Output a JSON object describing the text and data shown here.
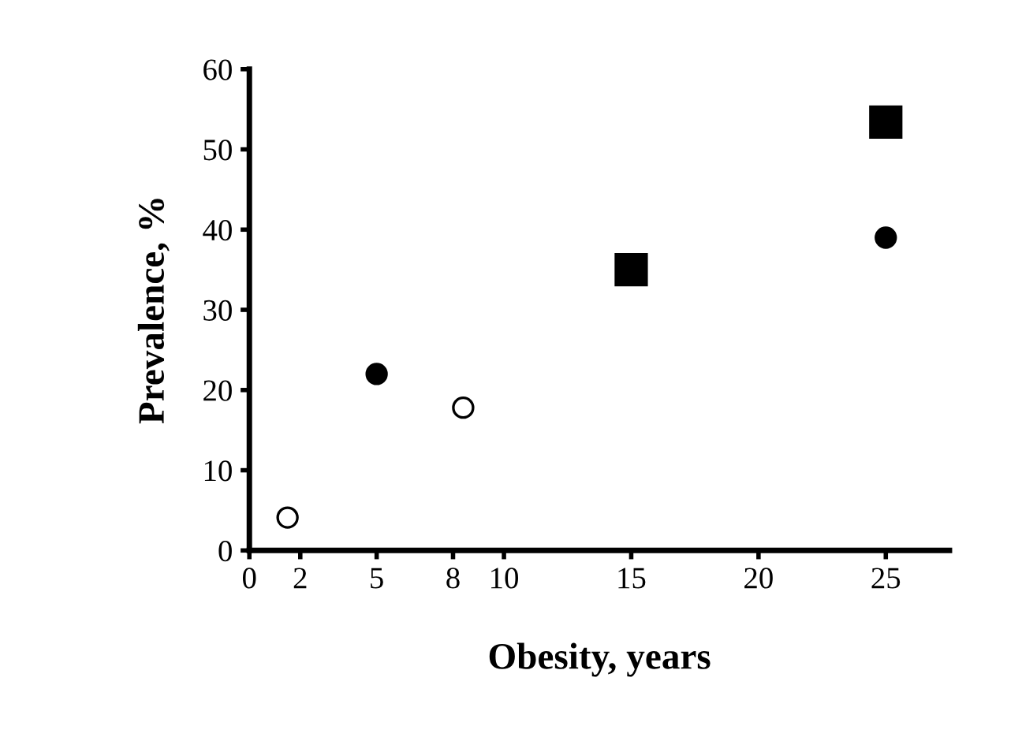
{
  "chart_data": {
    "type": "scatter",
    "xlabel": "Obesity, years",
    "ylabel": "Prevalence, %",
    "xlim": [
      0,
      27.5
    ],
    "ylim": [
      0,
      60
    ],
    "xticks": [
      0,
      2,
      5,
      8,
      10,
      15,
      20,
      25
    ],
    "yticks": [
      0,
      10,
      20,
      30,
      40,
      50,
      60
    ],
    "grid": false,
    "series": [
      {
        "color": "#ffffff",
        "marker": "circle",
        "x": [
          1.5,
          8.4
        ],
        "values": [
          4.1,
          17.8
        ]
      },
      {
        "color": "#000000",
        "marker": "circle",
        "x": [
          5,
          25
        ],
        "values": [
          22.0,
          39.0
        ]
      },
      {
        "color": "#000000",
        "marker": "square",
        "x": [
          15,
          25
        ],
        "values": [
          35.0,
          53.4
        ]
      }
    ]
  }
}
